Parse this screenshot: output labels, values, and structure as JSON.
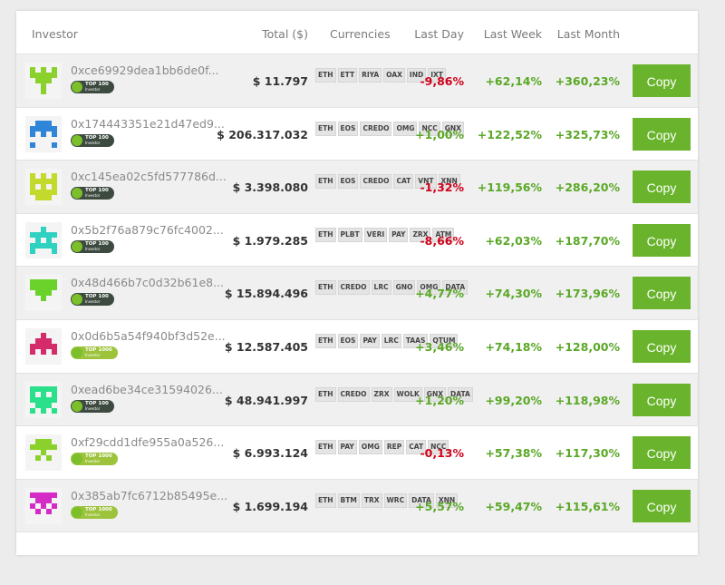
{
  "header": {
    "investor": "Investor",
    "total": "Total ($)",
    "currencies": "Currencies",
    "last_day": "Last Day",
    "last_week": "Last Week",
    "last_month": "Last Month"
  },
  "rows": [
    {
      "address": "0xce69929dea1bb6de0f...",
      "badge": {
        "rank": "TOP 100",
        "label": "Investor"
      },
      "total": "$ 11.797",
      "currencies": [
        "ETH",
        "ETT",
        "RIYA",
        "OAX",
        "IND",
        "IXT"
      ],
      "last_day": "-9,86%",
      "last_week": "+62,14%",
      "last_month": "+360,23%",
      "button": "Copy"
    },
    {
      "address": "0x174443351e21d47ed9...",
      "badge": {
        "rank": "TOP 100",
        "label": "Investor"
      },
      "total": "$ 206.317.032",
      "currencies": [
        "ETH",
        "EOS",
        "CREDO",
        "OMG",
        "NCC",
        "GNX"
      ],
      "last_day": "+1,00%",
      "last_week": "+122,52%",
      "last_month": "+325,73%",
      "button": "Copy"
    },
    {
      "address": "0xc145ea02c5fd577786d...",
      "badge": {
        "rank": "TOP 100",
        "label": "Investor"
      },
      "total": "$ 3.398.080",
      "currencies": [
        "ETH",
        "EOS",
        "CREDO",
        "CAT",
        "VNT",
        "XNN"
      ],
      "last_day": "-1,32%",
      "last_week": "+119,56%",
      "last_month": "+286,20%",
      "button": "Copy"
    },
    {
      "address": "0x5b2f76a879c76fc4002...",
      "badge": {
        "rank": "TOP 100",
        "label": "Investor"
      },
      "total": "$ 1.979.285",
      "currencies": [
        "ETH",
        "PLBT",
        "VERI",
        "PAY",
        "ZRX",
        "ATM"
      ],
      "last_day": "-8,66%",
      "last_week": "+62,03%",
      "last_month": "+187,70%",
      "button": "Copy"
    },
    {
      "address": "0x48d466b7c0d32b61e8...",
      "badge": {
        "rank": "TOP 100",
        "label": "Investor"
      },
      "total": "$ 15.894.496",
      "currencies": [
        "ETH",
        "CREDO",
        "LRC",
        "GNO",
        "OMG",
        "DATA"
      ],
      "last_day": "+4,77%",
      "last_week": "+74,30%",
      "last_month": "+173,96%",
      "button": "Copy"
    },
    {
      "address": "0x0d6b5a54f940bf3d52e...",
      "badge": {
        "rank": "TOP 1000",
        "label": "Investor"
      },
      "total": "$ 12.587.405",
      "currencies": [
        "ETH",
        "EOS",
        "PAY",
        "LRC",
        "TAAS",
        "QTUM"
      ],
      "last_day": "+3,46%",
      "last_week": "+74,18%",
      "last_month": "+128,00%",
      "button": "Copy"
    },
    {
      "address": "0xead6be34ce31594026...",
      "badge": {
        "rank": "TOP 100",
        "label": "Investor"
      },
      "total": "$ 48.941.997",
      "currencies": [
        "ETH",
        "CREDO",
        "ZRX",
        "WOLK",
        "GNX",
        "DATA"
      ],
      "last_day": "+1,20%",
      "last_week": "+99,20%",
      "last_month": "+118,98%",
      "button": "Copy"
    },
    {
      "address": "0xf29cdd1dfe955a0a526...",
      "badge": {
        "rank": "TOP 1000",
        "label": "Investor"
      },
      "total": "$ 6.993.124",
      "currencies": [
        "ETH",
        "PAY",
        "OMG",
        "REP",
        "CAT",
        "NCC"
      ],
      "last_day": "-0,13%",
      "last_week": "+57,38%",
      "last_month": "+117,30%",
      "button": "Copy"
    },
    {
      "address": "0x385ab7fc6712b85495e...",
      "badge": {
        "rank": "TOP 1000",
        "label": "Investor"
      },
      "total": "$ 1.699.194",
      "currencies": [
        "ETH",
        "BTM",
        "TRX",
        "WRC",
        "DATA",
        "XNN"
      ],
      "last_day": "+5,57%",
      "last_week": "+59,47%",
      "last_month": "+115,61%",
      "button": "Copy"
    }
  ]
}
